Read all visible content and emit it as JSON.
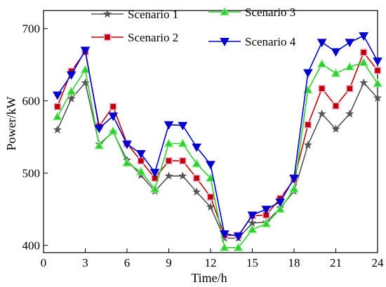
{
  "chart_data": {
    "type": "line",
    "xlabel": "Time/h",
    "ylabel": "Power/kW",
    "xlim": [
      0,
      24
    ],
    "ylim": [
      390,
      725
    ],
    "xticks": [
      0,
      3,
      6,
      9,
      12,
      15,
      18,
      21,
      24
    ],
    "yticks": [
      400,
      500,
      600,
      700
    ],
    "x": [
      1,
      2,
      3,
      4,
      5,
      6,
      7,
      8,
      9,
      10,
      11,
      12,
      13,
      14,
      15,
      16,
      17,
      18,
      19,
      20,
      21,
      22,
      23,
      24
    ],
    "grid": false,
    "legend_position": "top",
    "series": [
      {
        "name": "Scenario 1",
        "color": "#555555",
        "marker": "star",
        "values": [
          560,
          603,
          625,
          540,
          557,
          518,
          497,
          475,
          496,
          496,
          474,
          453,
          410,
          410,
          431,
          432,
          452,
          475,
          539,
          582,
          561,
          582,
          625,
          604
        ]
      },
      {
        "name": "Scenario 2",
        "color": "#c00000",
        "marker": "square",
        "values": [
          592,
          641,
          668,
          565,
          592,
          541,
          517,
          493,
          517,
          517,
          493,
          467,
          414,
          414,
          441,
          442,
          465,
          491,
          567,
          617,
          593,
          617,
          667,
          642
        ]
      },
      {
        "name": "Scenario 3",
        "color": "#33cc33",
        "marker": "triangle-up",
        "values": [
          578,
          613,
          643,
          538,
          558,
          514,
          502,
          478,
          541,
          541,
          513,
          493,
          397,
          397,
          422,
          430,
          450,
          478,
          615,
          651,
          638,
          647,
          653,
          624
        ]
      },
      {
        "name": "Scenario 4",
        "color": "#0000cc",
        "marker": "triangle-down",
        "values": [
          608,
          636,
          670,
          562,
          579,
          540,
          527,
          501,
          567,
          566,
          536,
          512,
          416,
          413,
          442,
          450,
          460,
          493,
          639,
          681,
          668,
          681,
          690,
          655
        ]
      }
    ]
  }
}
